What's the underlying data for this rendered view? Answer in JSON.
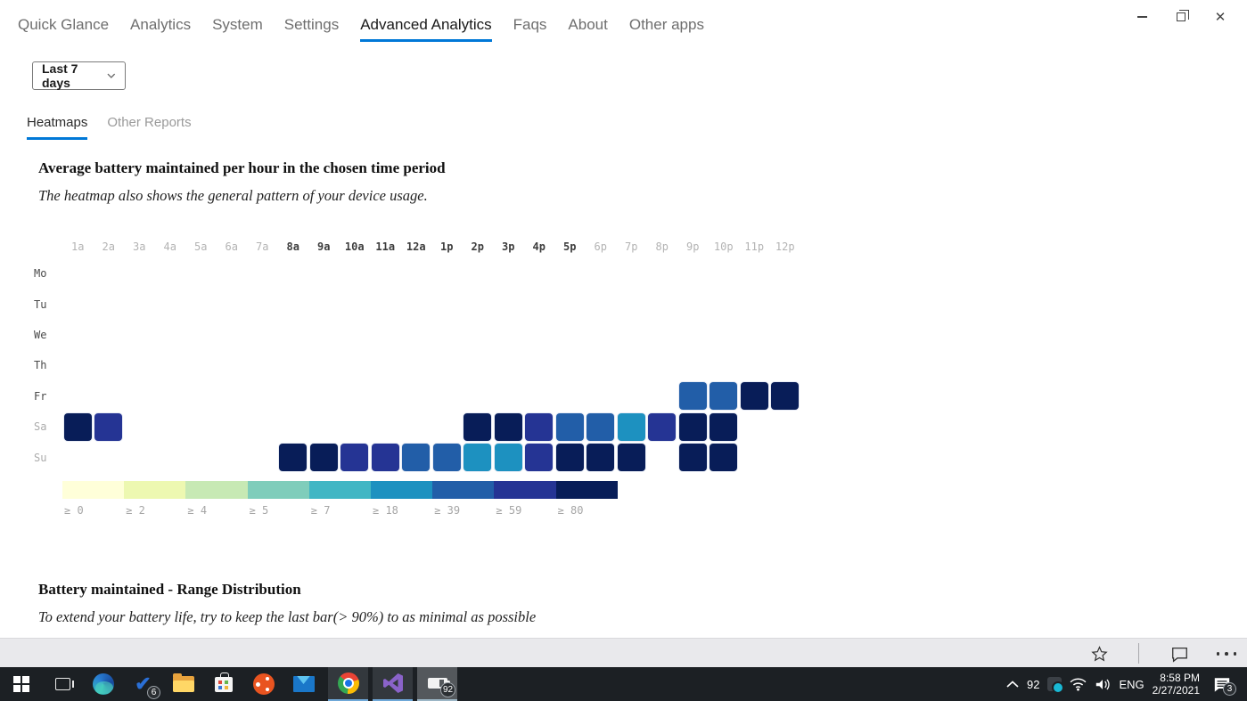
{
  "accent": "#0078d7",
  "window_controls": {
    "minimize": "minimize",
    "restore": "restore",
    "close": "close"
  },
  "nav": {
    "items": [
      {
        "label": "Quick Glance",
        "active": false
      },
      {
        "label": "Analytics",
        "active": false
      },
      {
        "label": "System",
        "active": false
      },
      {
        "label": "Settings",
        "active": false
      },
      {
        "label": "Advanced Analytics",
        "active": true
      },
      {
        "label": "Faqs",
        "active": false
      },
      {
        "label": "About",
        "active": false
      },
      {
        "label": "Other apps",
        "active": false
      }
    ]
  },
  "filter": {
    "label": "Last 7 days"
  },
  "tabs": [
    {
      "label": "Heatmaps",
      "active": true
    },
    {
      "label": "Other Reports",
      "active": false
    }
  ],
  "sections": {
    "heatmap_title": "Average battery maintained per hour in the chosen time period",
    "heatmap_subtitle": "The heatmap also shows the general pattern of your device usage.",
    "range_title": "Battery maintained - Range Distribution",
    "range_subtitle": "To extend your battery life, try to keep the last bar(> 90%) to as minimal as possible"
  },
  "chart_data": {
    "type": "heatmap",
    "title": "Average battery maintained per hour in the chosen time period",
    "columns": [
      "1a",
      "2a",
      "3a",
      "4a",
      "5a",
      "6a",
      "7a",
      "8a",
      "9a",
      "10a",
      "11a",
      "12a",
      "1p",
      "2p",
      "3p",
      "4p",
      "5p",
      "6p",
      "7p",
      "8p",
      "9p",
      "10p",
      "11p",
      "12p"
    ],
    "emphasized_columns": [
      "8a",
      "9a",
      "10a",
      "11a",
      "12a",
      "1p",
      "2p",
      "3p",
      "4p",
      "5p"
    ],
    "rows": [
      "Mo",
      "Tu",
      "We",
      "Th",
      "Fr",
      "Sa",
      "Su"
    ],
    "muted_rows": [
      "Sa",
      "Su"
    ],
    "level_colors": {
      "ge0": "#ffffd9",
      "ge2": "#edf8b1",
      "ge4": "#c7e9b4",
      "ge5": "#7fcdbb",
      "ge7": "#41b6c4",
      "ge18": "#1d91c0",
      "ge39": "#225ea8",
      "ge59": "#253494",
      "ge80": "#081d58"
    },
    "legend": [
      {
        "label": "≥ 0",
        "color": "#ffffd9"
      },
      {
        "label": "≥ 2",
        "color": "#edf8b1"
      },
      {
        "label": "≥ 4",
        "color": "#c7e9b4"
      },
      {
        "label": "≥ 5",
        "color": "#7fcdbb"
      },
      {
        "label": "≥ 7",
        "color": "#41b6c4"
      },
      {
        "label": "≥ 18",
        "color": "#1d91c0"
      },
      {
        "label": "≥ 39",
        "color": "#225ea8"
      },
      {
        "label": "≥ 59",
        "color": "#253494"
      },
      {
        "label": "≥ 80",
        "color": "#081d58"
      }
    ],
    "cells": [
      {
        "row": "Fr",
        "col": "9p",
        "level": "ge39"
      },
      {
        "row": "Fr",
        "col": "10p",
        "level": "ge39"
      },
      {
        "row": "Fr",
        "col": "11p",
        "level": "ge80"
      },
      {
        "row": "Fr",
        "col": "12p",
        "level": "ge80"
      },
      {
        "row": "Sa",
        "col": "1a",
        "level": "ge80"
      },
      {
        "row": "Sa",
        "col": "2a",
        "level": "ge59"
      },
      {
        "row": "Sa",
        "col": "2p",
        "level": "ge80"
      },
      {
        "row": "Sa",
        "col": "3p",
        "level": "ge80"
      },
      {
        "row": "Sa",
        "col": "4p",
        "level": "ge59"
      },
      {
        "row": "Sa",
        "col": "5p",
        "level": "ge39"
      },
      {
        "row": "Sa",
        "col": "6p",
        "level": "ge39"
      },
      {
        "row": "Sa",
        "col": "7p",
        "level": "ge18"
      },
      {
        "row": "Sa",
        "col": "8p",
        "level": "ge59"
      },
      {
        "row": "Sa",
        "col": "9p",
        "level": "ge80"
      },
      {
        "row": "Sa",
        "col": "10p",
        "level": "ge80"
      },
      {
        "row": "Su",
        "col": "8a",
        "level": "ge80"
      },
      {
        "row": "Su",
        "col": "9a",
        "level": "ge80"
      },
      {
        "row": "Su",
        "col": "10a",
        "level": "ge59"
      },
      {
        "row": "Su",
        "col": "11a",
        "level": "ge59"
      },
      {
        "row": "Su",
        "col": "12a",
        "level": "ge39"
      },
      {
        "row": "Su",
        "col": "1p",
        "level": "ge39"
      },
      {
        "row": "Su",
        "col": "2p",
        "level": "ge18"
      },
      {
        "row": "Su",
        "col": "3p",
        "level": "ge18"
      },
      {
        "row": "Su",
        "col": "4p",
        "level": "ge59"
      },
      {
        "row": "Su",
        "col": "5p",
        "level": "ge80"
      },
      {
        "row": "Su",
        "col": "6p",
        "level": "ge80"
      },
      {
        "row": "Su",
        "col": "7p",
        "level": "ge80"
      },
      {
        "row": "Su",
        "col": "9p",
        "level": "ge80"
      },
      {
        "row": "Su",
        "col": "10p",
        "level": "ge80"
      }
    ]
  },
  "appbar": {
    "icons": [
      "star-icon",
      "comment-icon",
      "more-icon"
    ]
  },
  "taskbar": {
    "pinned": [
      "start",
      "task-view",
      "edge",
      "to-do",
      "file-explorer",
      "store",
      "ubuntu",
      "mail"
    ],
    "running": [
      "chrome",
      "visual-studio",
      "battery-monitor"
    ],
    "todo_badge": "6",
    "battery_app_badge": "92",
    "tray": {
      "battery_percent": "92",
      "language": "ENG",
      "time": "8:58 PM",
      "date": "2/27/2021",
      "notification_count": "3"
    }
  }
}
